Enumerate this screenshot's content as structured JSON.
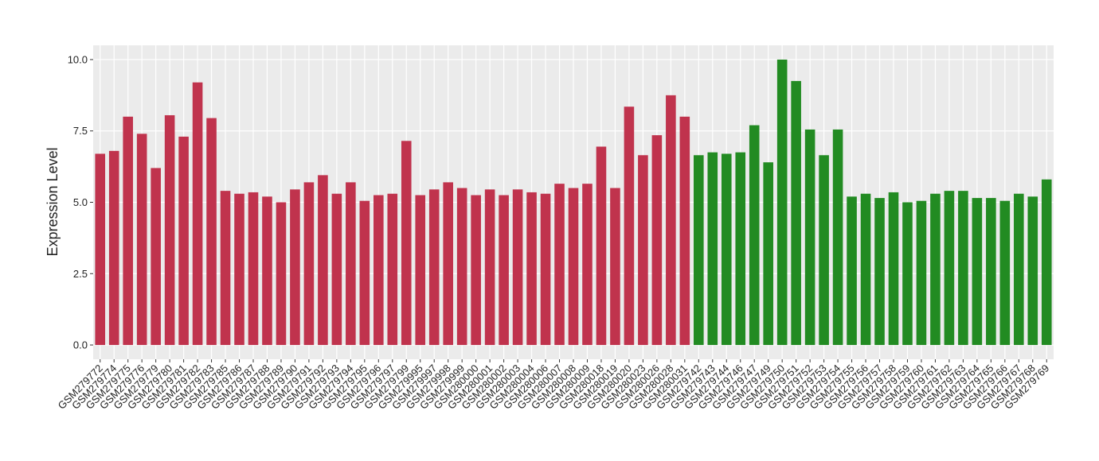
{
  "chart_data": {
    "type": "bar",
    "y_label": "Expression Level",
    "categories": [
      "GSM279772",
      "GSM279774",
      "GSM279775",
      "GSM279776",
      "GSM279779",
      "GSM279780",
      "GSM279781",
      "GSM279782",
      "GSM279783",
      "GSM279785",
      "GSM279786",
      "GSM279787",
      "GSM279788",
      "GSM279789",
      "GSM279790",
      "GSM279791",
      "GSM279792",
      "GSM279793",
      "GSM279794",
      "GSM279795",
      "GSM279796",
      "GSM279797",
      "GSM279799",
      "GSM279995",
      "GSM279997",
      "GSM279998",
      "GSM279999",
      "GSM280000",
      "GSM280001",
      "GSM280002",
      "GSM280003",
      "GSM280004",
      "GSM280006",
      "GSM280007",
      "GSM280008",
      "GSM280009",
      "GSM280018",
      "GSM280019",
      "GSM280020",
      "GSM280023",
      "GSM280026",
      "GSM280028",
      "GSM280031",
      "GSM279742",
      "GSM279743",
      "GSM279744",
      "GSM279746",
      "GSM279747",
      "GSM279749",
      "GSM279750",
      "GSM279751",
      "GSM279752",
      "GSM279753",
      "GSM279754",
      "GSM279755",
      "GSM279756",
      "GSM279757",
      "GSM279758",
      "GSM279759",
      "GSM279760",
      "GSM279761",
      "GSM279762",
      "GSM279763",
      "GSM279764",
      "GSM279765",
      "GSM279766",
      "GSM279767",
      "GSM279768",
      "GSM279769"
    ],
    "values": [
      6.7,
      6.8,
      8.0,
      7.4,
      6.2,
      8.05,
      7.3,
      9.2,
      7.95,
      5.4,
      5.3,
      5.35,
      5.2,
      5.0,
      5.45,
      5.7,
      5.95,
      5.3,
      5.7,
      5.05,
      5.25,
      5.3,
      7.15,
      5.25,
      5.45,
      5.7,
      5.5,
      5.25,
      5.45,
      5.25,
      5.45,
      5.35,
      5.3,
      5.65,
      5.5,
      5.65,
      6.95,
      5.5,
      8.35,
      6.65,
      7.35,
      8.75,
      8.0,
      6.65,
      6.75,
      6.7,
      6.75,
      7.7,
      6.4,
      10.0,
      9.25,
      7.55,
      6.65,
      7.55,
      5.2,
      5.3,
      5.15,
      5.35,
      5.0,
      5.05,
      5.3,
      5.4,
      5.4,
      5.15,
      5.15,
      5.05,
      5.3,
      5.2,
      5.8
    ],
    "colors": [
      "#c0334d",
      "#c0334d",
      "#c0334d",
      "#c0334d",
      "#c0334d",
      "#c0334d",
      "#c0334d",
      "#c0334d",
      "#c0334d",
      "#c0334d",
      "#c0334d",
      "#c0334d",
      "#c0334d",
      "#c0334d",
      "#c0334d",
      "#c0334d",
      "#c0334d",
      "#c0334d",
      "#c0334d",
      "#c0334d",
      "#c0334d",
      "#c0334d",
      "#c0334d",
      "#c0334d",
      "#c0334d",
      "#c0334d",
      "#c0334d",
      "#c0334d",
      "#c0334d",
      "#c0334d",
      "#c0334d",
      "#c0334d",
      "#c0334d",
      "#c0334d",
      "#c0334d",
      "#c0334d",
      "#c0334d",
      "#c0334d",
      "#c0334d",
      "#c0334d",
      "#c0334d",
      "#c0334d",
      "#c0334d",
      "#228b22",
      "#228b22",
      "#228b22",
      "#228b22",
      "#228b22",
      "#228b22",
      "#228b22",
      "#228b22",
      "#228b22",
      "#228b22",
      "#228b22",
      "#228b22",
      "#228b22",
      "#228b22",
      "#228b22",
      "#228b22",
      "#228b22",
      "#228b22",
      "#228b22",
      "#228b22",
      "#228b22",
      "#228b22",
      "#228b22",
      "#228b22",
      "#228b22",
      "#228b22"
    ],
    "ylim": [
      -0.5,
      10.5
    ],
    "yticks": [
      {
        "value": 0,
        "label": "0.0"
      },
      2.5,
      {
        "value": 5,
        "label": "5.0"
      },
      7.5,
      {
        "value": 10,
        "label": "10.0"
      }
    ],
    "grid": true
  }
}
